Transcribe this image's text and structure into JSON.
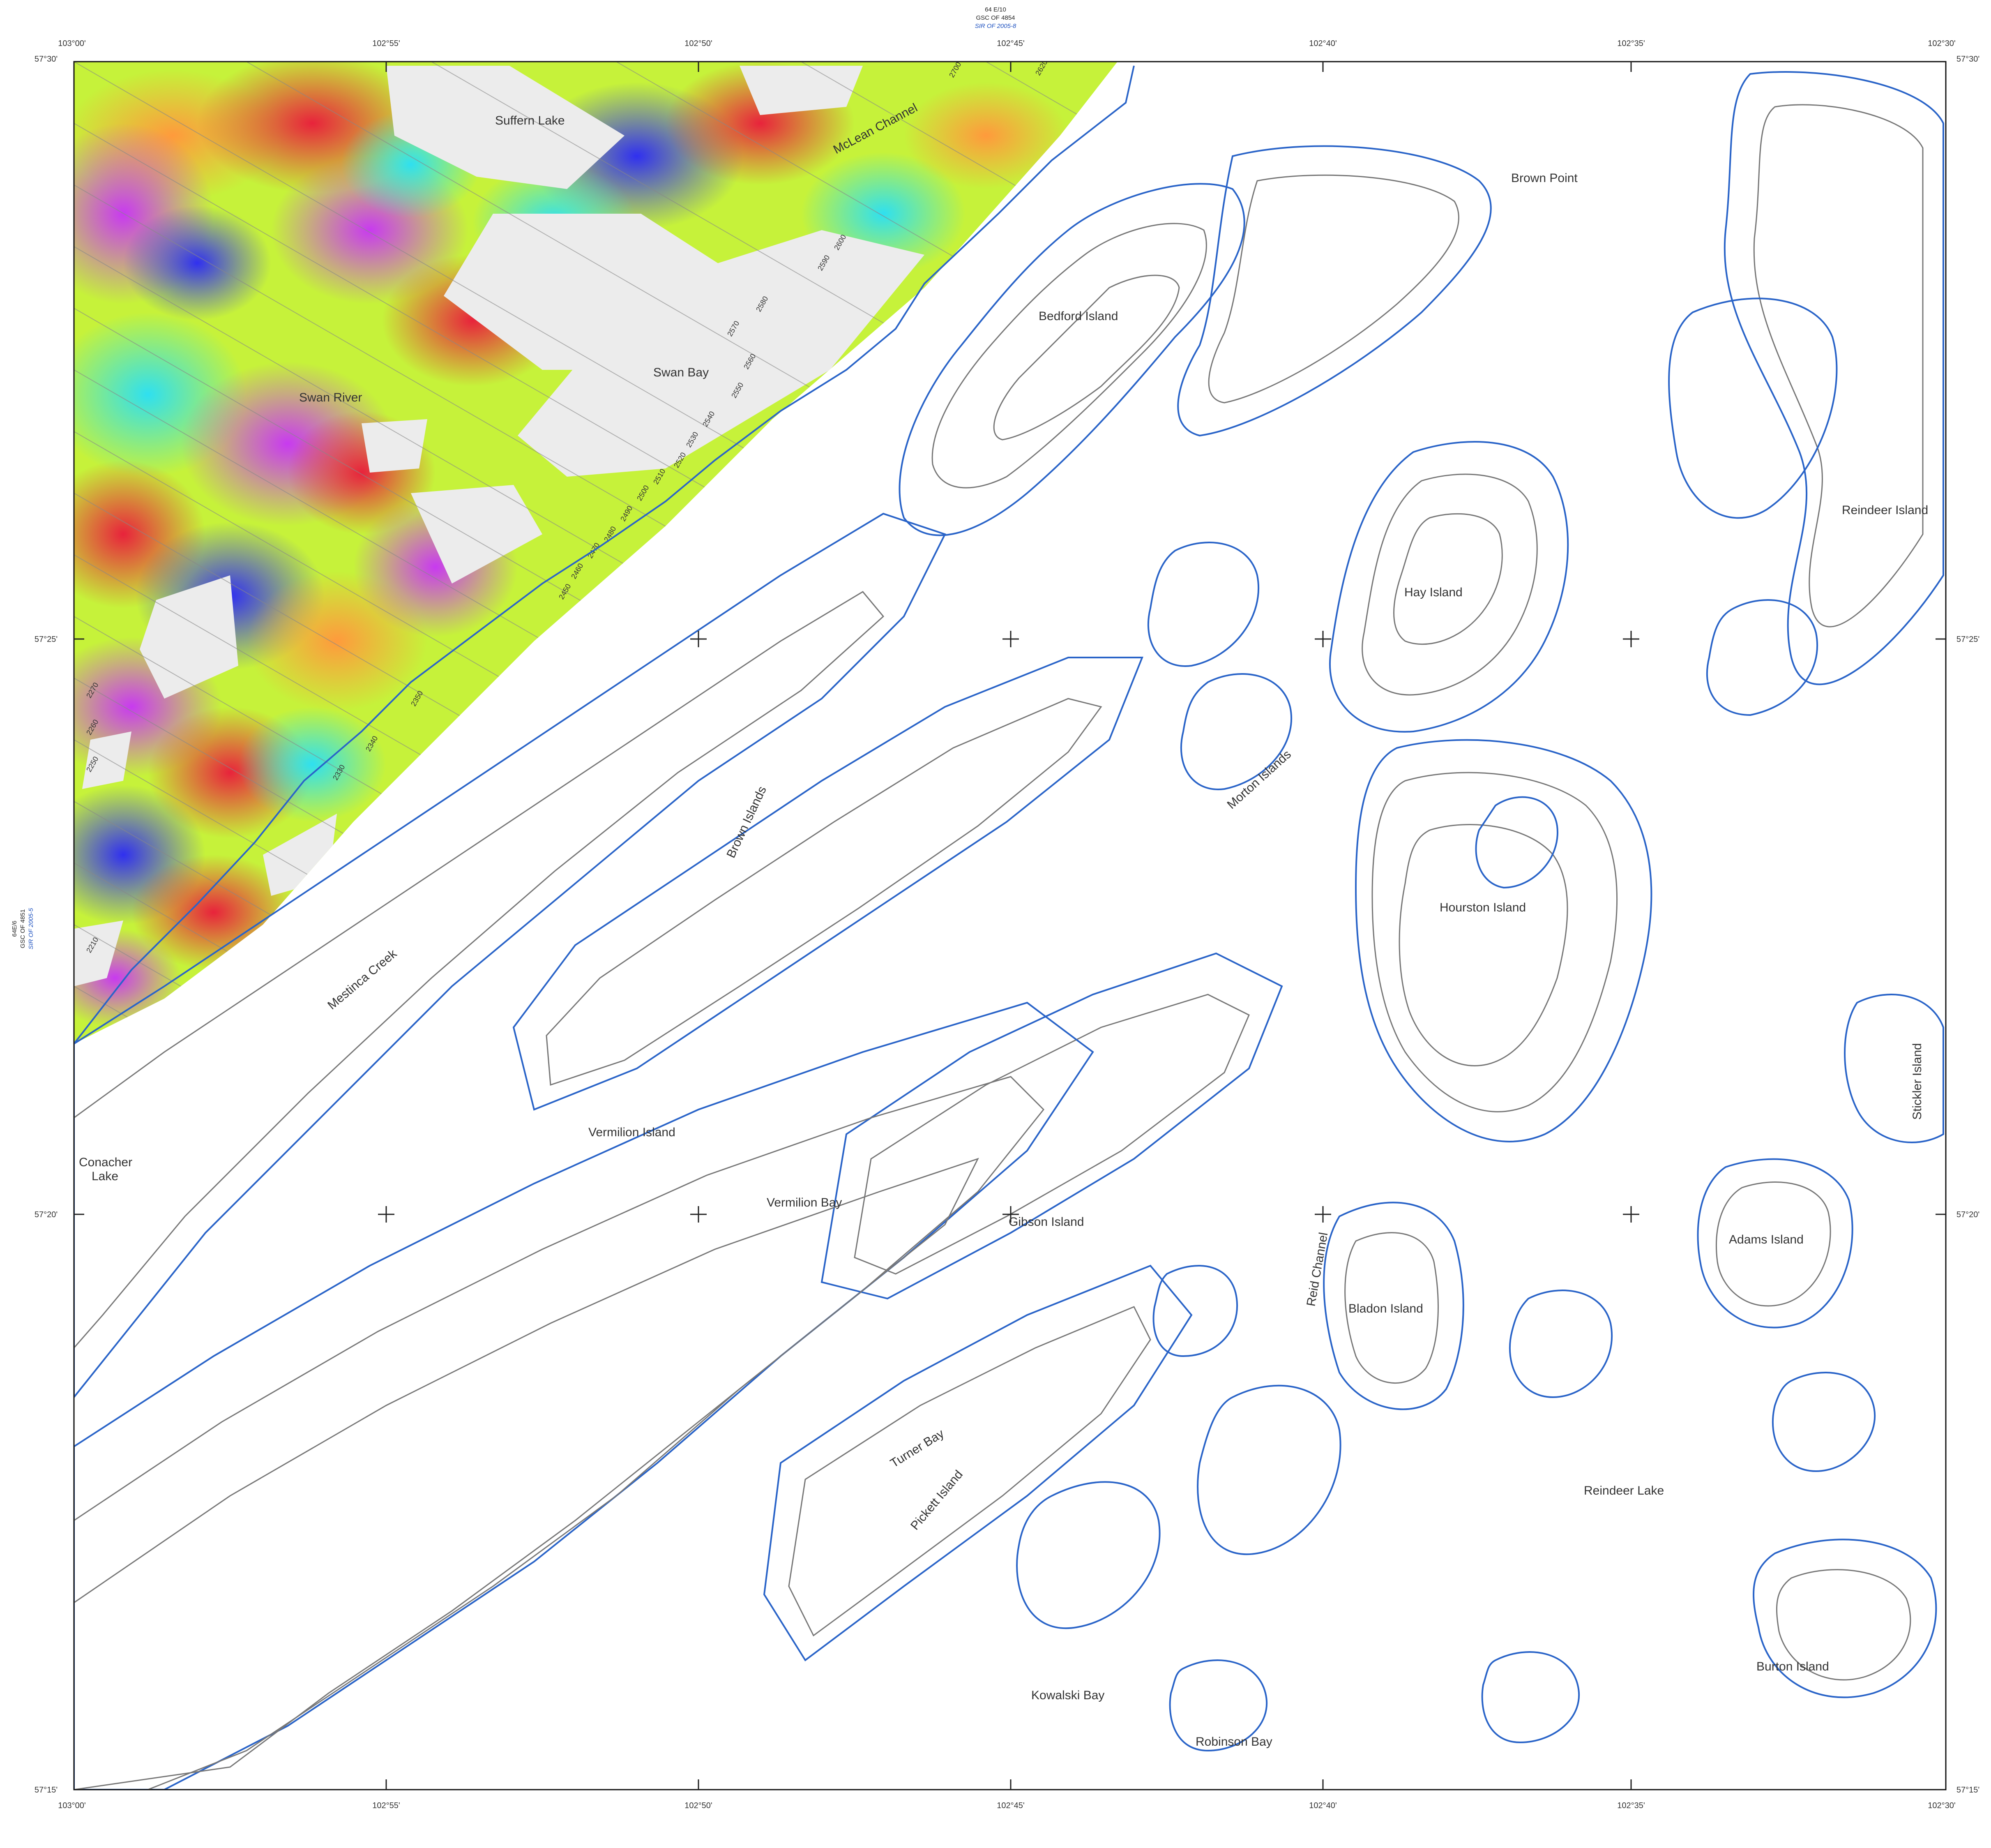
{
  "sheet_header": {
    "sheet": "64 E/10",
    "gsc": "GSC OF 4854",
    "sir": "SIR OF 2005-8"
  },
  "west_adjoining": {
    "sheet": "64E/6",
    "gsc": "GSC OF 4851",
    "sir": "SIR OF 2005-5"
  },
  "longitude_labels": [
    "103°00'",
    "102°55'",
    "102°50'",
    "102°45'",
    "102°40'",
    "102°35'",
    "102°30'"
  ],
  "latitude_labels": [
    "57°30'",
    "57°25'",
    "57°20'",
    "57°15'"
  ],
  "place_names": [
    "Suffern Lake",
    "McLean Channel",
    "Brown Point",
    "Bedford Island",
    "Swan Bay",
    "Swan River",
    "Reindeer Island",
    "Hay Island",
    "Morton Islands",
    "Brown Islands",
    "Hourston Island",
    "Mestinca Creek",
    "Stickler Island",
    "Conacher",
    "Lake",
    "Vermilion Island",
    "Vermilion Bay",
    "Gibson Island",
    "Reid Channel",
    "Adams Island",
    "Bladon Island",
    "Turner Bay",
    "Pickett Island",
    "Reindeer Lake",
    "Burton Island",
    "Kowalski Bay",
    "Robinson Bay"
  ],
  "flight_line_labels": [
    "2700",
    "2620",
    "2600",
    "2590",
    "2580",
    "2570",
    "2560",
    "2550",
    "2540",
    "2530",
    "2520",
    "2510",
    "2500",
    "2490",
    "2480",
    "2470",
    "2460",
    "2450",
    "2350",
    "2340",
    "2330",
    "2270",
    "2260",
    "2250",
    "2210"
  ],
  "colors": {
    "shoreline": "#2a64c8",
    "contour": "#777777",
    "magnetic_low": "#3d3df0",
    "magnetic_mid_low": "#33ddee",
    "magnetic_mid": "#c6f23a",
    "magnetic_mid_high": "#ff9a3c",
    "magnetic_high": "#e8233b",
    "magnetic_peak": "#d64df0",
    "survey_gap": "#ececec"
  }
}
